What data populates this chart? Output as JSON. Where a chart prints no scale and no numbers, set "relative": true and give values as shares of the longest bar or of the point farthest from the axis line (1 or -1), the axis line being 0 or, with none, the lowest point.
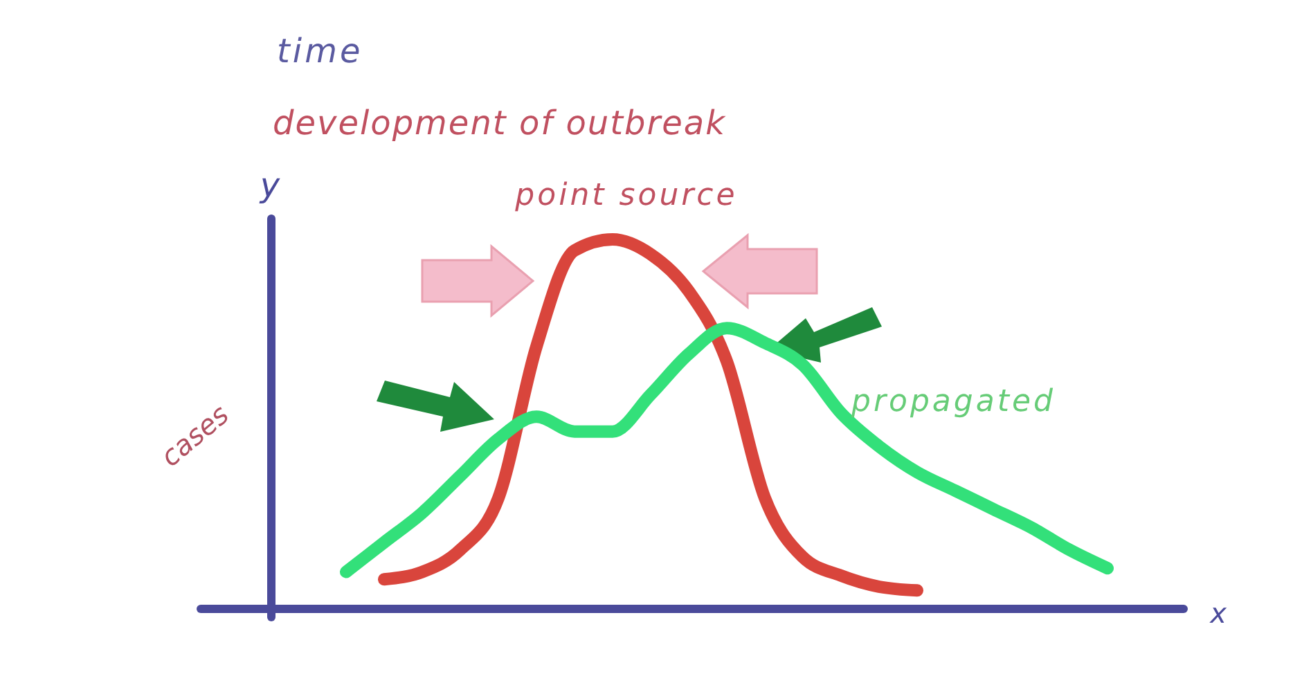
{
  "chart_data": {
    "type": "line",
    "relative": true,
    "title": "time",
    "subtitle": "development of outbreak",
    "xlabel": "x",
    "ylabel": "cases",
    "annotations": [
      "y"
    ],
    "categories": [
      null,
      null,
      null,
      null,
      null,
      null,
      null,
      null,
      null,
      null,
      null,
      null,
      null,
      null,
      null,
      null,
      null,
      null,
      null,
      null,
      null
    ],
    "series": [
      {
        "name": "point source",
        "color": "#d9453c",
        "values": [
          null,
          0.08,
          0.1,
          0.16,
          0.3,
          0.71,
          0.97,
          1.0,
          0.96,
          0.86,
          0.67,
          0.3,
          0.14,
          0.09,
          0.06,
          0.05,
          null,
          null,
          null,
          null,
          null
        ]
      },
      {
        "name": "propagated",
        "color": "#33e07a",
        "values": [
          0.1,
          0.18,
          0.26,
          0.36,
          0.46,
          0.52,
          0.48,
          0.48,
          0.58,
          0.69,
          0.76,
          0.72,
          0.66,
          0.53,
          0.44,
          0.37,
          0.32,
          0.27,
          0.22,
          0.16,
          0.11
        ]
      }
    ],
    "marker": "none",
    "line_style": "solid"
  }
}
